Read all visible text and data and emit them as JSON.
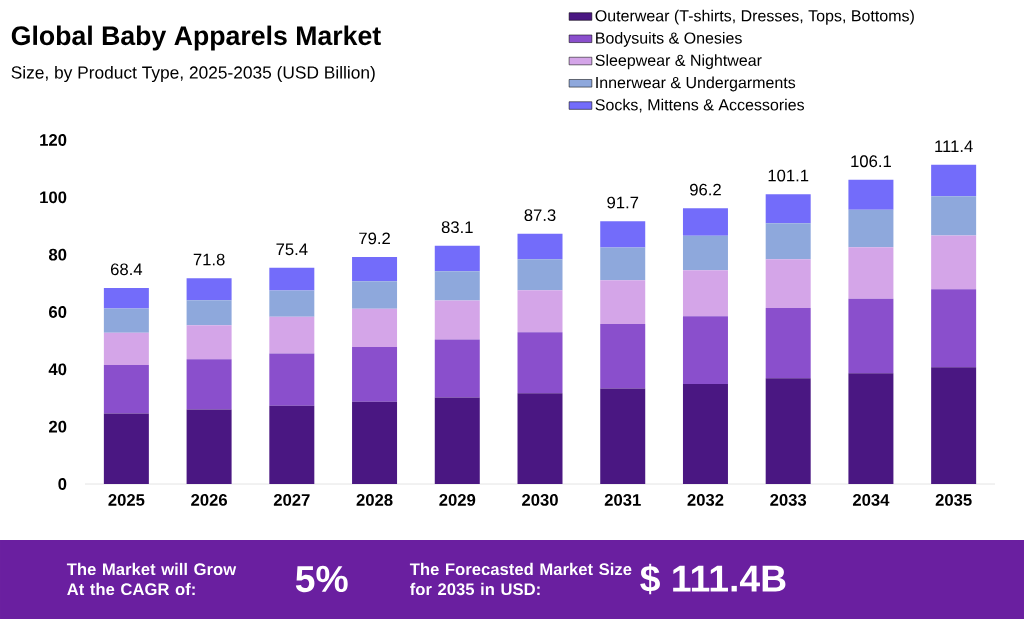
{
  "chart_data": {
    "type": "bar",
    "title": "Global Baby Apparels Market",
    "subtitle": "Size, by Product Type, 2025-2035 (USD Billion)",
    "categories": [
      "2025",
      "2026",
      "2027",
      "2028",
      "2029",
      "2030",
      "2031",
      "2032",
      "2033",
      "2034",
      "2035"
    ],
    "stacked": true,
    "series": [
      {
        "name": "Outerwear (T-shirts, Dresses, Tops, Bottoms)",
        "color": "#4a1782",
        "values": [
          24.6,
          26.0,
          27.3,
          28.7,
          30.2,
          31.7,
          33.3,
          34.9,
          36.9,
          38.6,
          40.7
        ]
      },
      {
        "name": "Bodysuits & Onesies",
        "color": "#8a4fcc",
        "values": [
          16.9,
          17.5,
          18.2,
          19.1,
          20.2,
          21.2,
          22.5,
          23.6,
          24.5,
          26.0,
          27.2
        ]
      },
      {
        "name": "Sleepwear & Nightwear",
        "color": "#d4a5e8",
        "values": [
          11.3,
          11.9,
          12.8,
          13.3,
          13.6,
          14.7,
          15.3,
          16.1,
          17.0,
          18.0,
          18.8
        ]
      },
      {
        "name": "Innerwear & Undergarments",
        "color": "#8ea8dc",
        "values": [
          8.4,
          8.7,
          9.2,
          9.6,
          10.2,
          10.8,
          11.4,
          12.0,
          12.6,
          13.1,
          13.7
        ]
      },
      {
        "name": "Socks, Mittens & Accessories",
        "color": "#736cfa",
        "values": [
          7.2,
          7.7,
          7.9,
          8.5,
          8.9,
          8.9,
          9.2,
          9.6,
          10.1,
          10.4,
          11.0
        ]
      }
    ],
    "totals": [
      "68.4",
      "71.8",
      "75.4",
      "79.2",
      "83.1",
      "87.3",
      "91.7",
      "96.2",
      "101.1",
      "106.1",
      "111.4"
    ],
    "ylim": [
      0,
      120
    ],
    "yticks": [
      0,
      20,
      40,
      60,
      80,
      100,
      120
    ],
    "grid": false,
    "legend": "top right",
    "annotations": [
      "The Market will Grow At the CAGR of:",
      "5%",
      "The Forecasted Market Size for 2035 in USD:",
      "$ 111.4B"
    ]
  }
}
